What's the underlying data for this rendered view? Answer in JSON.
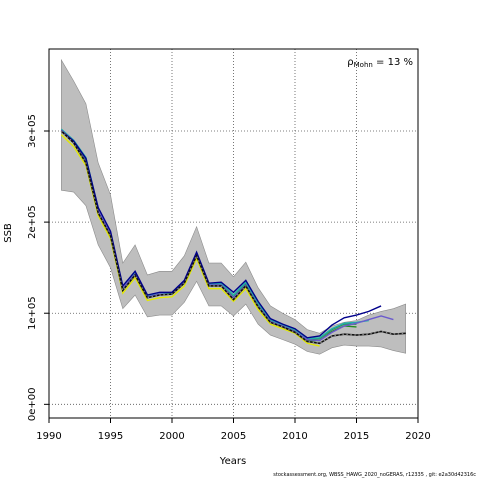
{
  "chart_data": {
    "type": "line",
    "xlabel": "Years",
    "ylabel": "SSB",
    "xlim": [
      1990,
      2020
    ],
    "ylim": [
      -15000,
      390000
    ],
    "x_ticks": [
      1990,
      1995,
      2000,
      2005,
      2010,
      2015,
      2020
    ],
    "y_ticks": [
      0,
      100000,
      200000,
      300000
    ],
    "y_tick_labels": [
      "0e+00",
      "1e+05",
      "2e+05",
      "3e+05"
    ],
    "grid": true,
    "annotation": {
      "rho_symbol": "ρ",
      "rho_subscript": "Mohn",
      "rho_value": " = 13 %"
    },
    "colors": {
      "band": "#bebebe",
      "band_edge": "#8c8c8c",
      "peels": [
        "#228b22",
        "#2e8b57",
        "#20b2aa",
        "#6a5acd",
        "#00008b",
        "#87ceeb"
      ],
      "base": "#111111",
      "base_dots": "#888888",
      "yellow": "#e6e600"
    },
    "band": {
      "x": [
        1991,
        1992,
        1993,
        1994,
        1995,
        1996,
        1997,
        1998,
        1999,
        2000,
        2001,
        2002,
        2003,
        2004,
        2005,
        2006,
        2007,
        2008,
        2009,
        2010,
        2011,
        2012,
        2013,
        2014,
        2015,
        2016,
        2017,
        2018,
        2019
      ],
      "lower": [
        235000,
        233000,
        218000,
        175000,
        150000,
        105000,
        120000,
        96000,
        98000,
        98000,
        112000,
        135000,
        108000,
        108000,
        97000,
        110000,
        88000,
        76000,
        71000,
        66000,
        58000,
        55000,
        62000,
        65000,
        64000,
        64000,
        63000,
        59000,
        56000
      ],
      "upper": [
        378000,
        355000,
        330000,
        265000,
        230000,
        155000,
        175000,
        142000,
        146000,
        146000,
        163000,
        195000,
        155000,
        155000,
        140000,
        156000,
        128000,
        108000,
        100000,
        93000,
        82000,
        78000,
        86000,
        90000,
        92000,
        98000,
        102000,
        105000,
        110000
      ]
    },
    "series": [
      {
        "x": [
          1991,
          1992,
          1993,
          1994,
          1995,
          1996,
          1997,
          1998,
          1999,
          2000,
          2001,
          2002,
          2003,
          2004,
          2005,
          2006,
          2007,
          2008,
          2009,
          2010,
          2011,
          2012,
          2013,
          2014,
          2015,
          2016,
          2017,
          2018,
          2019
        ],
        "values": [
          300000,
          287000,
          265000,
          210000,
          185000,
          125000,
          142000,
          117000,
          120000,
          121000,
          133000,
          163000,
          130000,
          130000,
          115000,
          130000,
          107000,
          90000,
          85000,
          79000,
          69000,
          67000,
          75000,
          77000,
          76000,
          77000,
          80000,
          77000,
          78000
        ]
      },
      {
        "x": [
          1991,
          1992,
          1993,
          1994,
          1995,
          1996,
          1997,
          1998,
          1999,
          2000,
          2001,
          2002,
          2003,
          2004,
          2005,
          2006,
          2007,
          2008,
          2009,
          2010,
          2011,
          2012,
          2013,
          2014,
          2015
        ],
        "values": [
          300000,
          288000,
          268000,
          212000,
          186000,
          127000,
          143000,
          118000,
          121000,
          121000,
          134000,
          165000,
          131000,
          131000,
          117000,
          132000,
          109000,
          91000,
          86000,
          80000,
          70000,
          70000,
          80000,
          86000,
          85000
        ]
      },
      {
        "x": [
          1991,
          1992,
          1993,
          1994,
          1995,
          1996,
          1997,
          1998,
          1999,
          2000,
          2001,
          2002,
          2003,
          2004,
          2005,
          2006,
          2007,
          2008,
          2009,
          2010,
          2011,
          2012,
          2013,
          2014,
          2015
        ],
        "values": [
          301000,
          289000,
          270000,
          214000,
          187000,
          128000,
          144000,
          118000,
          121000,
          121000,
          134000,
          165000,
          131000,
          132000,
          118000,
          133000,
          110000,
          92000,
          86000,
          81000,
          71000,
          72000,
          82000,
          88000,
          88000
        ]
      },
      {
        "x": [
          1991,
          1992,
          1993,
          1994,
          1995,
          1996,
          1997,
          1998,
          1999,
          2000,
          2001,
          2002,
          2003,
          2004,
          2005,
          2006,
          2007,
          2008,
          2009,
          2010,
          2011,
          2012,
          2013,
          2014,
          2015,
          2016
        ],
        "values": [
          302000,
          290000,
          271000,
          215000,
          188000,
          129000,
          144000,
          119000,
          121000,
          122000,
          135000,
          166000,
          132000,
          133000,
          120000,
          134000,
          111000,
          93000,
          87000,
          82000,
          72000,
          73000,
          83000,
          89000,
          90000,
          92000
        ]
      },
      {
        "x": [
          1991,
          1992,
          1993,
          1994,
          1995,
          1996,
          1997,
          1998,
          1999,
          2000,
          2001,
          2002,
          2003,
          2004,
          2005,
          2006,
          2007,
          2008,
          2009,
          2010,
          2011,
          2012,
          2013,
          2014,
          2015,
          2016,
          2017,
          2018
        ],
        "values": [
          301000,
          289000,
          269000,
          213000,
          187000,
          128000,
          143000,
          118000,
          121000,
          121000,
          134000,
          165000,
          131000,
          131000,
          117000,
          131000,
          108000,
          91000,
          86000,
          80000,
          71000,
          70000,
          79000,
          86000,
          89000,
          93000,
          97000,
          93000
        ]
      },
      {
        "x": [
          1991,
          1992,
          1993,
          1994,
          1995,
          1996,
          1997,
          1998,
          1999,
          2000,
          2001,
          2002,
          2003,
          2004,
          2005,
          2006,
          2007,
          2008,
          2009,
          2010,
          2011,
          2012,
          2013,
          2014,
          2015,
          2016,
          2017
        ],
        "values": [
          300000,
          289000,
          270000,
          216000,
          190000,
          130000,
          146000,
          120000,
          123000,
          123000,
          136000,
          167000,
          133000,
          134000,
          123000,
          136000,
          113000,
          94000,
          88000,
          83000,
          73000,
          75000,
          87000,
          95000,
          98000,
          102000,
          108000
        ]
      },
      {
        "x": [
          1991,
          1992,
          1993,
          1994,
          1995,
          1996,
          1997,
          1998,
          1999,
          2000,
          2001,
          2002,
          2003,
          2004,
          2005,
          2006,
          2007,
          2008,
          2009,
          2010,
          2011,
          2012
        ],
        "values": [
          296000,
          283000,
          262000,
          207000,
          182000,
          122000,
          139000,
          114000,
          117000,
          118000,
          130000,
          160000,
          127000,
          127000,
          113000,
          127000,
          104000,
          88000,
          83000,
          78000,
          67000,
          64000
        ]
      }
    ],
    "footer": "stockassessment.org,  WBSS_HAWG_2020_noGERAS,  r12335 ,  git:  e2a30d42316c"
  }
}
